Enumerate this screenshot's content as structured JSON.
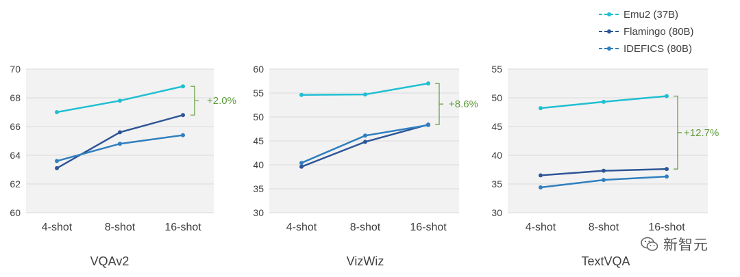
{
  "legend": {
    "items": [
      {
        "label": "Emu2 (37B)",
        "color": "#1fbfd2"
      },
      {
        "label": "Flamingo (80B)",
        "color": "#2e5597"
      },
      {
        "label": "IDEFICS (80B)",
        "color": "#2f7fbf"
      }
    ]
  },
  "watermark": {
    "text": "新智元"
  },
  "chart_data": [
    {
      "type": "line",
      "title": "VQAv2",
      "categories": [
        "4-shot",
        "8-shot",
        "16-shot"
      ],
      "ylim": [
        60,
        70
      ],
      "yticks": [
        60,
        62,
        64,
        66,
        68,
        70
      ],
      "grid": true,
      "series": [
        {
          "name": "Emu2 (37B)",
          "color": "#1fbfd2",
          "values": [
            67.0,
            67.8,
            68.8
          ]
        },
        {
          "name": "Flamingo (80B)",
          "color": "#2e5597",
          "values": [
            63.1,
            65.6,
            66.8
          ]
        },
        {
          "name": "IDEFICS (80B)",
          "color": "#2f7fbf",
          "values": [
            63.6,
            64.8,
            65.4
          ]
        }
      ],
      "annotation": {
        "text": "+2.0%",
        "from": 66.8,
        "to": 68.8,
        "color": "#5e9a3a"
      }
    },
    {
      "type": "line",
      "title": "VizWiz",
      "categories": [
        "4-shot",
        "8-shot",
        "16-shot"
      ],
      "ylim": [
        30,
        60
      ],
      "yticks": [
        30,
        35,
        40,
        45,
        50,
        55,
        60
      ],
      "grid": true,
      "series": [
        {
          "name": "Emu2 (37B)",
          "color": "#1fbfd2",
          "values": [
            54.6,
            54.7,
            57.0
          ]
        },
        {
          "name": "Flamingo (80B)",
          "color": "#2e5597",
          "values": [
            39.6,
            44.8,
            48.4
          ]
        },
        {
          "name": "IDEFICS (80B)",
          "color": "#2f7fbf",
          "values": [
            40.4,
            46.1,
            48.3
          ]
        }
      ],
      "annotation": {
        "text": "+8.6%",
        "from": 48.4,
        "to": 57.0,
        "color": "#5e9a3a"
      }
    },
    {
      "type": "line",
      "title": "TextVQA",
      "categories": [
        "4-shot",
        "8-shot",
        "16-shot"
      ],
      "ylim": [
        30,
        55
      ],
      "yticks": [
        30,
        35,
        40,
        45,
        50,
        55
      ],
      "grid": true,
      "series": [
        {
          "name": "Emu2 (37B)",
          "color": "#1fbfd2",
          "values": [
            48.2,
            49.3,
            50.3
          ]
        },
        {
          "name": "Flamingo (80B)",
          "color": "#2e5597",
          "values": [
            36.5,
            37.3,
            37.6
          ]
        },
        {
          "name": "IDEFICS (80B)",
          "color": "#2f7fbf",
          "values": [
            34.4,
            35.7,
            36.3
          ]
        }
      ],
      "annotation": {
        "text": "+12.7%",
        "from": 37.6,
        "to": 50.3,
        "color": "#5e9a3a"
      }
    }
  ]
}
